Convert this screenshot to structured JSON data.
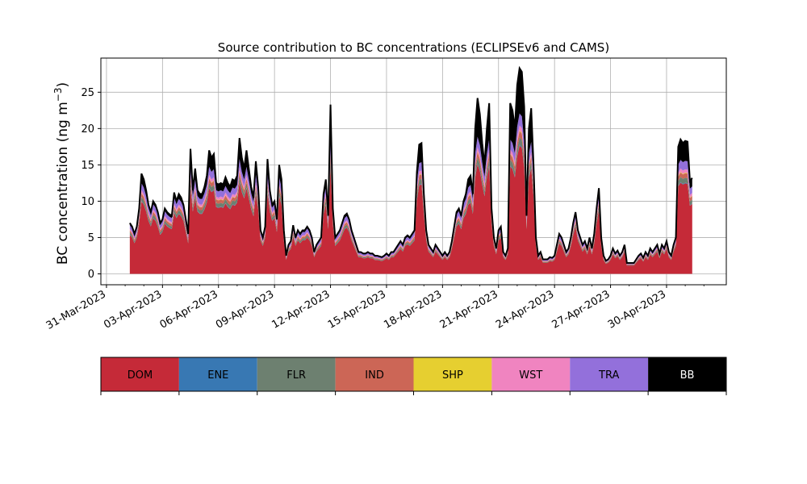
{
  "chart_data": {
    "type": "area",
    "stacked": true,
    "title": "Source contribution to BC concentrations (ECLIPSEv6 and CAMS)",
    "ylabel_main": "BC concentration (ng m",
    "ylabel_sup": "−3",
    "ylabel_close": ")",
    "ylim": [
      -1.5,
      29.7
    ],
    "yticks": [
      0,
      5,
      10,
      15,
      20,
      25
    ],
    "xlim": [
      -0.3,
      33.2
    ],
    "grid": true,
    "xticks": [
      {
        "d": 0,
        "label": "31-Mar-2023"
      },
      {
        "d": 3,
        "label": "03-Apr-2023"
      },
      {
        "d": 6,
        "label": "06-Apr-2023"
      },
      {
        "d": 9,
        "label": "09-Apr-2023"
      },
      {
        "d": 12,
        "label": "12-Apr-2023"
      },
      {
        "d": 15,
        "label": "15-Apr-2023"
      },
      {
        "d": 18,
        "label": "18-Apr-2023"
      },
      {
        "d": 21,
        "label": "21-Apr-2023"
      },
      {
        "d": 24,
        "label": "24-Apr-2023"
      },
      {
        "d": 27,
        "label": "27-Apr-2023"
      },
      {
        "d": 30,
        "label": "30-Apr-2023"
      }
    ],
    "x_start_day": 1.25,
    "x_step_days": 0.125,
    "total": [
      7.0,
      6.5,
      5.5,
      6.5,
      9.0,
      13.8,
      13.0,
      11.5,
      9.5,
      8.5,
      10.0,
      9.5,
      8.5,
      7.0,
      7.5,
      9.0,
      8.5,
      8.2,
      8.0,
      11.2,
      10.0,
      11.0,
      10.5,
      9.5,
      7.5,
      5.5,
      17.2,
      11.5,
      14.5,
      11.5,
      11.0,
      11.0,
      12.0,
      13.5,
      17.0,
      16.0,
      16.5,
      12.5,
      12.3,
      12.5,
      12.3,
      13.3,
      12.5,
      12.0,
      13.0,
      12.8,
      13.5,
      18.7,
      16.0,
      14.5,
      17.0,
      14.5,
      12.0,
      10.5,
      15.5,
      12.0,
      6.0,
      5.0,
      6.5,
      15.8,
      11.5,
      9.5,
      10.0,
      7.5,
      15.0,
      13.0,
      6.0,
      2.5,
      4.0,
      4.5,
      6.7,
      5.0,
      6.0,
      5.5,
      6.0,
      6.0,
      6.5,
      6.0,
      5.0,
      3.0,
      4.0,
      4.5,
      5.0,
      11.0,
      13.0,
      8.0,
      23.3,
      9.0,
      5.0,
      5.5,
      6.0,
      7.0,
      8.0,
      8.3,
      7.5,
      6.0,
      5.0,
      4.0,
      3.0,
      3.0,
      2.8,
      2.8,
      3.0,
      2.8,
      2.8,
      2.5,
      2.5,
      2.4,
      2.3,
      2.5,
      2.8,
      2.5,
      3.0,
      3.0,
      3.5,
      4.0,
      4.5,
      4.0,
      5.0,
      5.3,
      5.0,
      5.5,
      6.0,
      14.0,
      17.8,
      18.0,
      11.0,
      6.0,
      4.0,
      3.5,
      3.0,
      4.0,
      3.5,
      3.0,
      2.5,
      3.0,
      2.5,
      3.0,
      4.5,
      6.5,
      8.5,
      9.0,
      8.0,
      10.0,
      11.0,
      13.0,
      13.5,
      11.0,
      20.0,
      24.2,
      22.0,
      18.0,
      15.0,
      20.0,
      23.5,
      9.0,
      5.0,
      3.5,
      6.0,
      6.5,
      3.0,
      2.5,
      3.5,
      23.5,
      22.5,
      20.0,
      26.0,
      28.3,
      27.8,
      23.0,
      8.0,
      20.0,
      22.8,
      15.0,
      5.0,
      2.5,
      3.0,
      2.0,
      2.0,
      2.0,
      2.3,
      2.2,
      2.5,
      4.0,
      5.5,
      5.0,
      4.0,
      3.0,
      3.5,
      5.0,
      7.0,
      8.5,
      6.0,
      5.0,
      4.0,
      4.5,
      3.5,
      5.0,
      3.5,
      5.5,
      9.0,
      11.8,
      5.0,
      2.5,
      1.8,
      2.0,
      2.5,
      3.5,
      2.8,
      3.2,
      2.5,
      3.0,
      4.0,
      1.5,
      1.5,
      1.5,
      1.5,
      2.0,
      2.5,
      2.8,
      2.2,
      3.0,
      2.5,
      3.5,
      3.0,
      3.5,
      4.0,
      2.8,
      4.0,
      3.5,
      4.5,
      3.0,
      2.5,
      4.0,
      5.0,
      17.5,
      18.5,
      18.0,
      18.3,
      18.2,
      12.8,
      13.2
    ],
    "fractions": [
      0.8,
      0.005,
      0.045,
      0.04,
      0.005,
      0.03,
      0.075
    ],
    "series": [
      {
        "name": "DOM",
        "color": "#c52a38"
      },
      {
        "name": "ENE",
        "color": "#3878b3"
      },
      {
        "name": "FLR",
        "color": "#6d8070"
      },
      {
        "name": "IND",
        "color": "#cc6656"
      },
      {
        "name": "SHP",
        "color": "#e6cf30"
      },
      {
        "name": "WST",
        "color": "#f084c0"
      },
      {
        "name": "TRA",
        "color": "#9370db"
      },
      {
        "name": "BB",
        "color": "#000000"
      }
    ]
  },
  "legend": {
    "text_colors": [
      "#000000",
      "#000000",
      "#000000",
      "#000000",
      "#000000",
      "#000000",
      "#000000",
      "#ffffff"
    ]
  }
}
